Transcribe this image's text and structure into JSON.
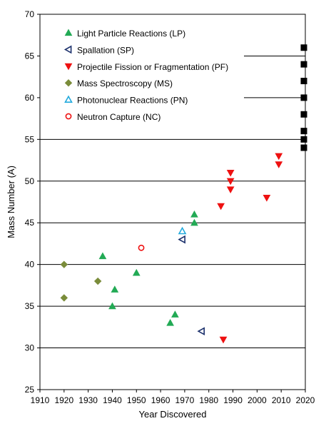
{
  "chart_data": {
    "type": "scatter",
    "xlabel": "Year Discovered",
    "ylabel": "Mass Number (A)",
    "xlim": [
      1910,
      2020
    ],
    "ylim": [
      25,
      70
    ],
    "x_ticks": [
      1910,
      1920,
      1930,
      1940,
      1950,
      1960,
      1970,
      1980,
      1990,
      2000,
      2010,
      2020
    ],
    "y_ticks": [
      25,
      30,
      35,
      40,
      45,
      50,
      55,
      60,
      65,
      70
    ],
    "grid": "horizontal",
    "legend_position": "top-left",
    "series": [
      {
        "name": "Light Particle Reactions (LP)",
        "marker": "triangle-up",
        "filled": true,
        "color": "#22aa55",
        "points": [
          [
            1936,
            41
          ],
          [
            1940,
            35
          ],
          [
            1941,
            37
          ],
          [
            1950,
            39
          ],
          [
            1964,
            33
          ],
          [
            1966,
            34
          ],
          [
            1974,
            45
          ],
          [
            1974,
            46
          ]
        ]
      },
      {
        "name": "Spallation (SP)",
        "marker": "triangle-left",
        "filled": false,
        "color": "#1a2f6b",
        "points": [
          [
            1969,
            43
          ],
          [
            1977,
            32
          ]
        ]
      },
      {
        "name": "Projectile Fission or Fragmentation (PF)",
        "marker": "triangle-down",
        "filled": true,
        "color": "#ee1111",
        "points": [
          [
            1985,
            47
          ],
          [
            1986,
            31
          ],
          [
            1989,
            49
          ],
          [
            1989,
            50
          ],
          [
            1989,
            51
          ],
          [
            2004,
            48
          ],
          [
            2009,
            52
          ],
          [
            2009,
            53
          ]
        ]
      },
      {
        "name": "Mass Spectroscopy (MS)",
        "marker": "diamond",
        "filled": true,
        "color": "#7a8c3a",
        "points": [
          [
            1920,
            36
          ],
          [
            1920,
            40
          ],
          [
            1934,
            38
          ]
        ]
      },
      {
        "name": "Photonuclear Reactions (PN)",
        "marker": "triangle-up",
        "filled": false,
        "color": "#22aadd",
        "points": [
          [
            1969,
            44
          ]
        ]
      },
      {
        "name": "Neutron Capture (NC)",
        "marker": "circle",
        "filled": false,
        "color": "#ee1111",
        "points": [
          [
            1952,
            42
          ]
        ]
      },
      {
        "name": "",
        "marker": "square",
        "filled": true,
        "color": "#000000",
        "points": [
          [
            2020,
            54
          ],
          [
            2020,
            55
          ],
          [
            2020,
            56
          ],
          [
            2020,
            58
          ],
          [
            2020,
            60
          ],
          [
            2020,
            62
          ],
          [
            2020,
            64
          ],
          [
            2020,
            66
          ]
        ]
      }
    ]
  }
}
